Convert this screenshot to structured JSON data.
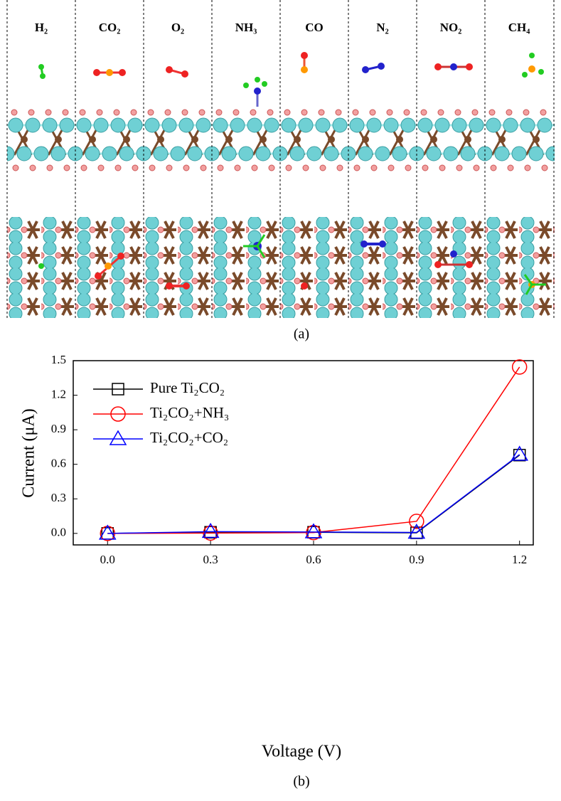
{
  "panel_a": {
    "labels": [
      "H₂",
      "CO₂",
      "O₂",
      "NH₃",
      "CO",
      "N₂",
      "NO₂",
      "CH₄"
    ],
    "caption": "(a)"
  },
  "chart_data": {
    "type": "line",
    "caption": "(b)",
    "x_label": "Voltage (V)",
    "y_label": "Current (μA)",
    "x": [
      0,
      0.3,
      0.6,
      0.9,
      1.2
    ],
    "series": [
      {
        "name": "Pure Ti₂CO₂",
        "color": "#000000",
        "marker": "square",
        "values": [
          0,
          0.01,
          0.01,
          0.005,
          0.68
        ]
      },
      {
        "name": "Ti₂CO₂+NH₃",
        "color": "#ff0000",
        "marker": "circle",
        "values": [
          0,
          0.003,
          0.007,
          0.105,
          1.445
        ]
      },
      {
        "name": "Ti₂CO₂+CO₂",
        "color": "#0000ff",
        "marker": "triangle",
        "values": [
          0,
          0.015,
          0.012,
          0.008,
          0.685
        ]
      }
    ],
    "xlim": [
      -0.1,
      1.24
    ],
    "ylim": [
      -0.1,
      1.5
    ],
    "xticks": [
      {
        "value": 0,
        "label": "0.0"
      },
      0.3,
      0.6,
      0.9,
      1.2
    ],
    "yticks": [
      {
        "value": 0,
        "label": "0.0"
      },
      0.3,
      0.6,
      0.9,
      1.2,
      1.5
    ],
    "legend": "upper left"
  }
}
